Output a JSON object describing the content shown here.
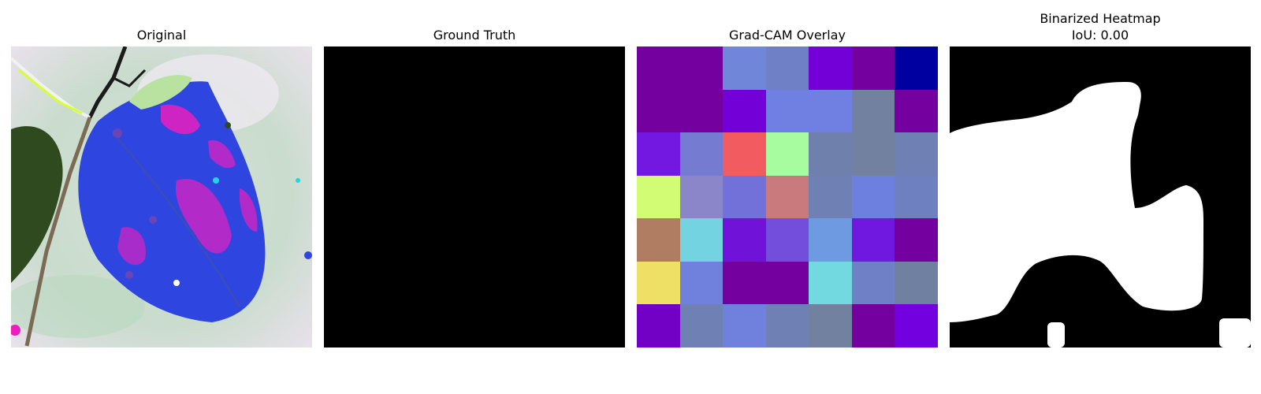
{
  "panels": {
    "original": {
      "title": "Original"
    },
    "ground_truth": {
      "title": "Ground Truth"
    },
    "gradcam": {
      "title": "Grad-CAM Overlay",
      "cells": [
        [
          "#73009f",
          "#73009f",
          "#7086d8",
          "#6f80c7",
          "#7300d7",
          "#73009f",
          "#0000a0"
        ],
        [
          "#73009f",
          "#73009f",
          "#7300d7",
          "#7080e2",
          "#7080e2",
          "#72819f",
          "#73009f"
        ],
        [
          "#7318e0",
          "#767bd2",
          "#f25c60",
          "#a8fca0",
          "#6f80ad",
          "#72819f",
          "#6f80b4"
        ],
        [
          "#d1fc73",
          "#8b85c9",
          "#7171d9",
          "#c87a7c",
          "#6f80b4",
          "#6d80e0",
          "#6f80c0"
        ],
        [
          "#b07d62",
          "#74d3e0",
          "#7112d9",
          "#734edd",
          "#6d9ae0",
          "#7118e0",
          "#73009f"
        ],
        [
          "#ede064",
          "#6f80dd",
          "#73009f",
          "#73009f",
          "#72d9e0",
          "#6f80c7",
          "#6f80a0"
        ],
        [
          "#7300c5",
          "#6f80b4",
          "#6f80dd",
          "#6f80b4",
          "#72819f",
          "#73009f",
          "#7300df"
        ]
      ]
    },
    "binarized": {
      "title_line1": "Binarized Heatmap",
      "title_line2": "IoU: 0.00"
    }
  },
  "colors": {
    "leaf_blue": "#2f45e0",
    "leaf_magenta": "#ea1fbd",
    "leaf_dark": "#2f4a1f",
    "background": "#dde6e0",
    "mask_white": "#ffffff",
    "mask_black": "#000000"
  }
}
